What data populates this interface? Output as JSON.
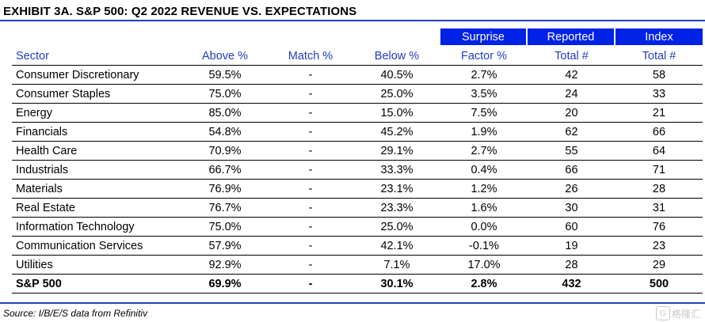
{
  "title": "EXHIBIT 3A.  S&P 500: Q2 2022 REVENUE VS. EXPECTATIONS",
  "table": {
    "super_headers": [
      "Surprise",
      "Reported",
      "Index"
    ],
    "headers": [
      "Sector",
      "Above %",
      "Match %",
      "Below %",
      "Factor %",
      "Total #",
      "Total #"
    ],
    "rows": [
      [
        "Consumer Discretionary",
        "59.5%",
        "-",
        "40.5%",
        "2.7%",
        "42",
        "58"
      ],
      [
        "Consumer Staples",
        "75.0%",
        "-",
        "25.0%",
        "3.5%",
        "24",
        "33"
      ],
      [
        "Energy",
        "85.0%",
        "-",
        "15.0%",
        "7.5%",
        "20",
        "21"
      ],
      [
        "Financials",
        "54.8%",
        "-",
        "45.2%",
        "1.9%",
        "62",
        "66"
      ],
      [
        "Health Care",
        "70.9%",
        "-",
        "29.1%",
        "2.7%",
        "55",
        "64"
      ],
      [
        "Industrials",
        "66.7%",
        "-",
        "33.3%",
        "0.4%",
        "66",
        "71"
      ],
      [
        "Materials",
        "76.9%",
        "-",
        "23.1%",
        "1.2%",
        "26",
        "28"
      ],
      [
        "Real Estate",
        "76.7%",
        "-",
        "23.3%",
        "1.6%",
        "30",
        "31"
      ],
      [
        "Information Technology",
        "75.0%",
        "-",
        "25.0%",
        "0.0%",
        "60",
        "76"
      ],
      [
        "Communication Services",
        "57.9%",
        "-",
        "42.1%",
        "-0.1%",
        "19",
        "23"
      ],
      [
        "Utilities",
        "92.9%",
        "-",
        "7.1%",
        "17.0%",
        "28",
        "29"
      ]
    ],
    "total": [
      "S&P 500",
      "69.9%",
      "-",
      "30.1%",
      "2.8%",
      "432",
      "500"
    ]
  },
  "source": "Source: I/B/E/S data from Refinitiv",
  "watermark": {
    "logo_glyph": "G",
    "text": "格隆汇"
  },
  "colors": {
    "accent_blue": "#0022e6",
    "header_text_blue": "#1f3dbf",
    "rule_blue": "#1f3dbf"
  }
}
